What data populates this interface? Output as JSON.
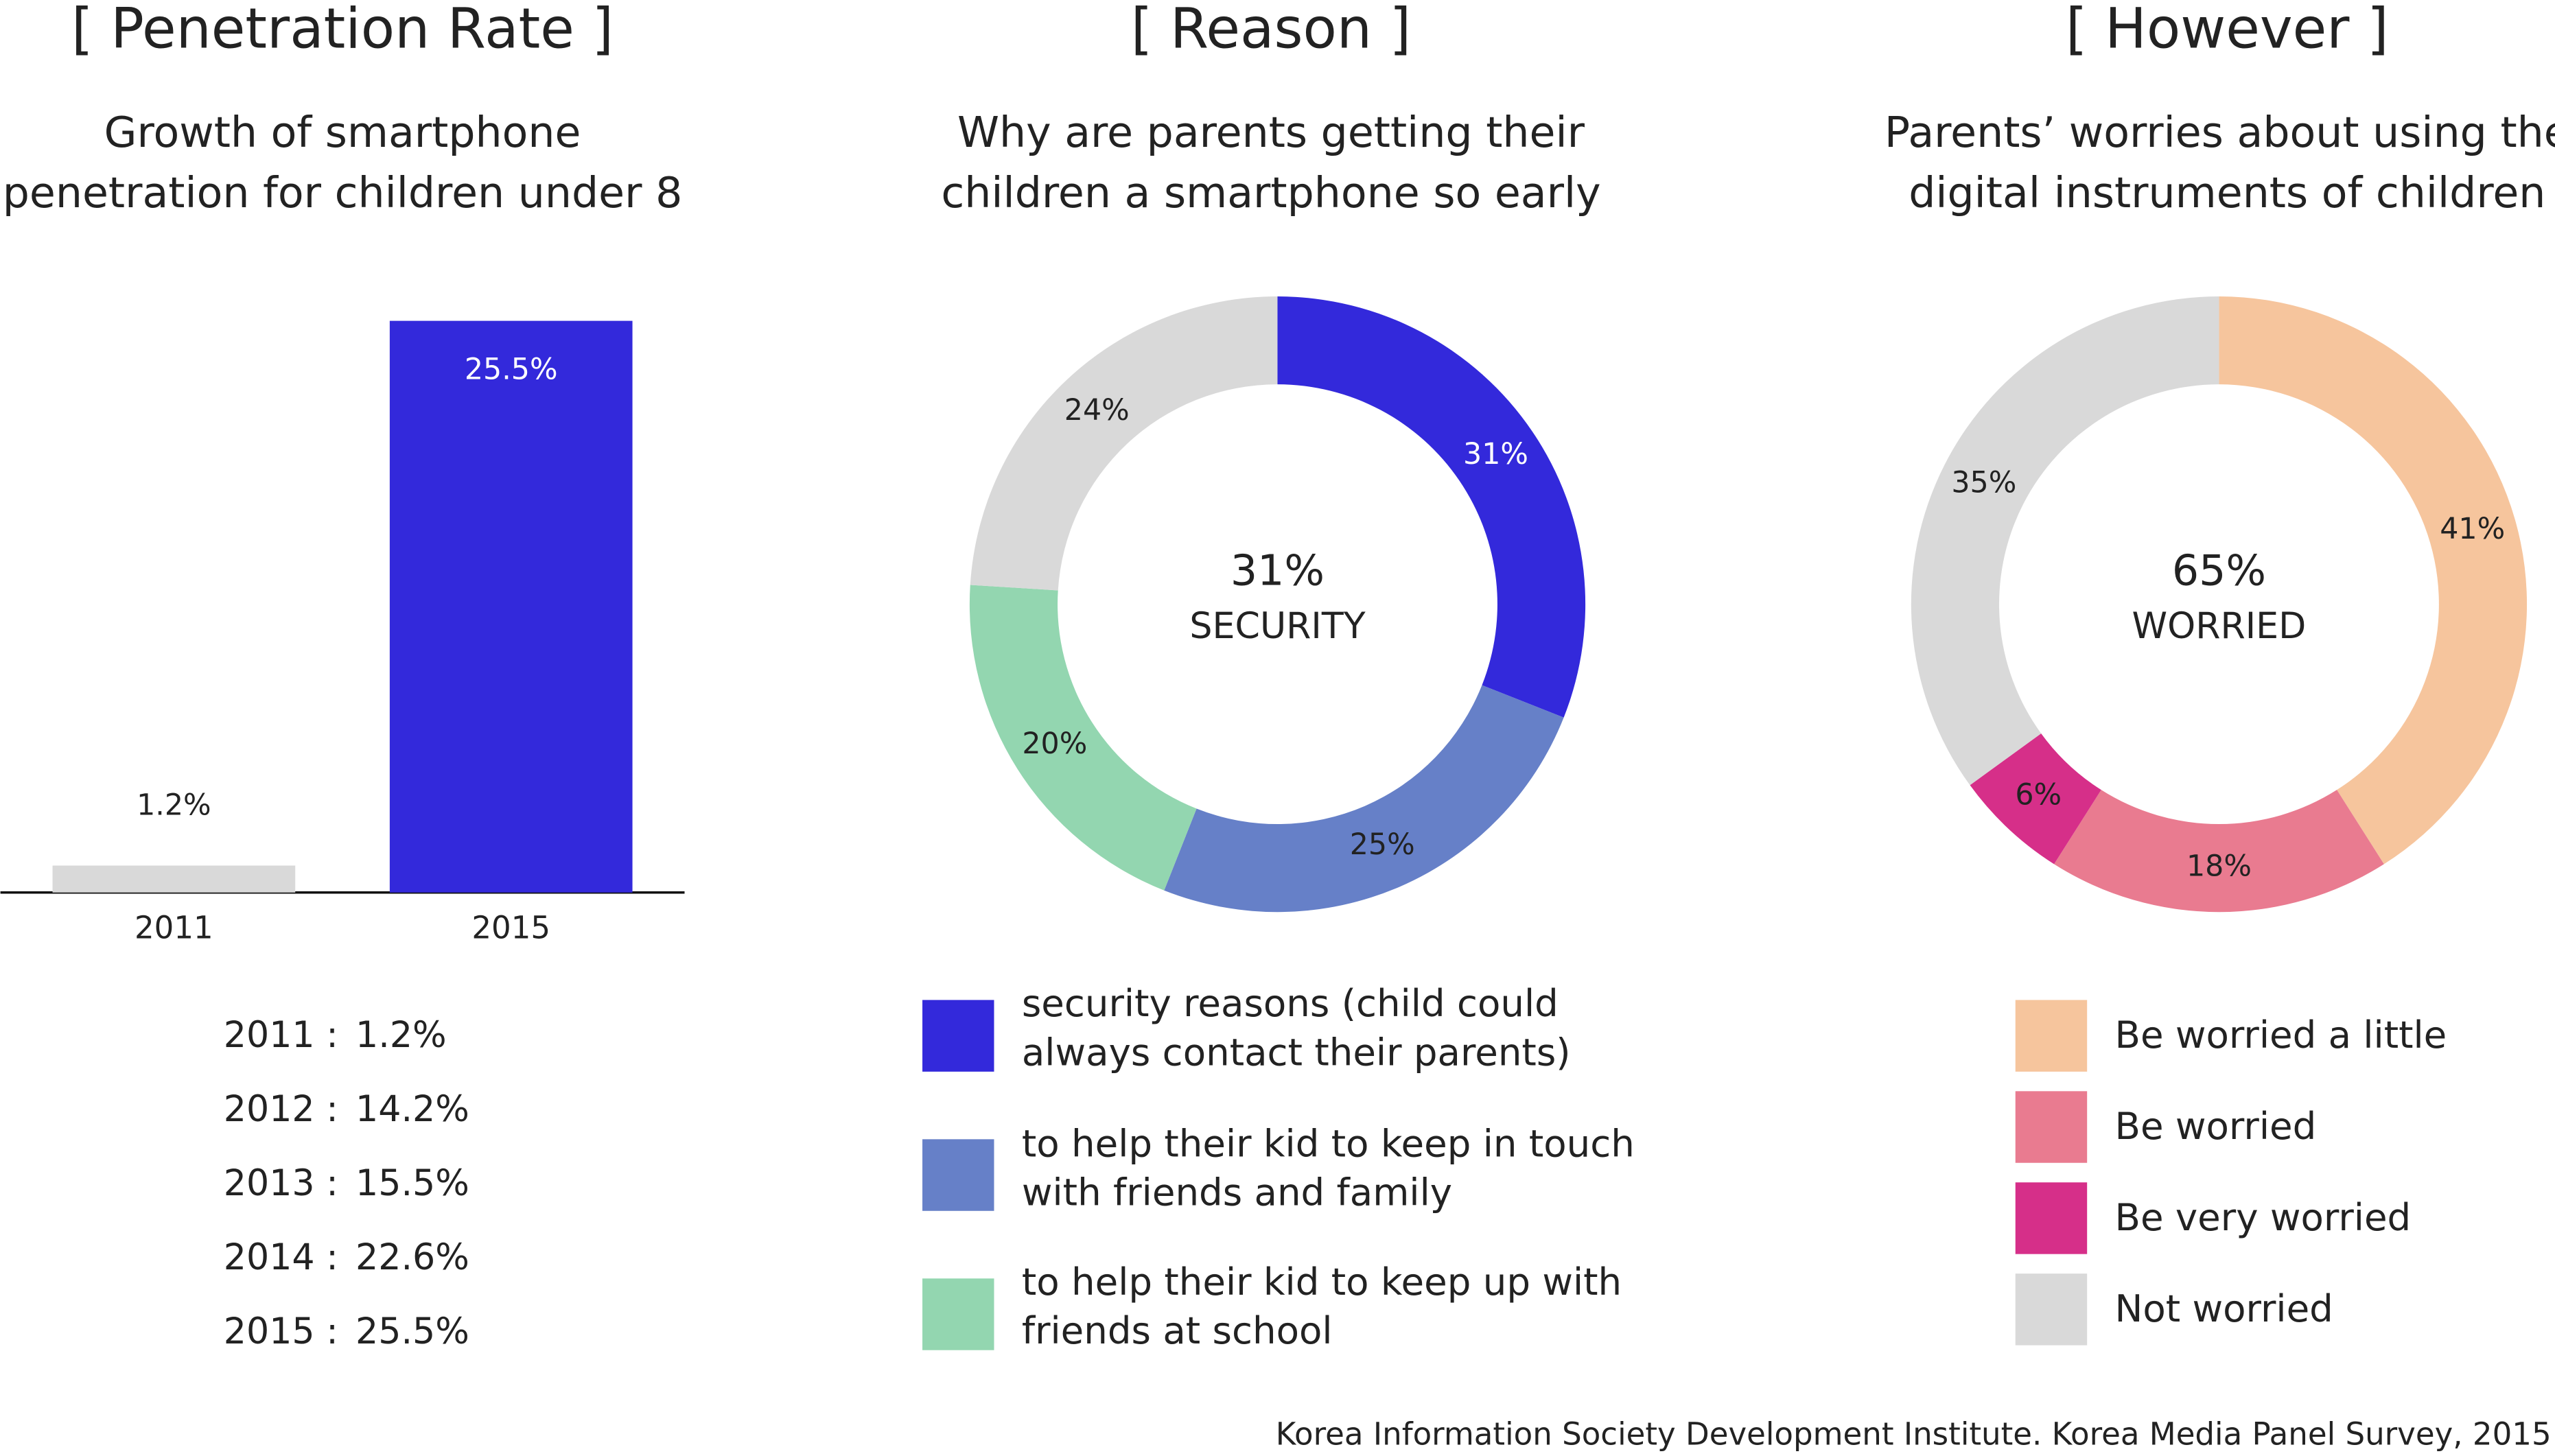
{
  "chart_data": [
    {
      "type": "bar",
      "title": "[ Penetration Rate ]",
      "subtitle": [
        "Growth of smartphone",
        "penetration for children under 8"
      ],
      "categories": [
        "2011",
        "2015"
      ],
      "values": [
        1.2,
        25.5
      ],
      "value_labels": [
        "1.2%",
        "25.5%"
      ],
      "colors": [
        "#d9d9d9",
        "#3329db"
      ],
      "yearly_values": [
        [
          "2011 :",
          "1.2%"
        ],
        [
          "2012 :",
          "14.2%"
        ],
        [
          "2013 :",
          "15.5%"
        ],
        [
          "2014 :",
          "22.6%"
        ],
        [
          "2015 :",
          "25.5%"
        ]
      ]
    },
    {
      "type": "donut",
      "title": "[ Reason ]",
      "subtitle": [
        "Why are parents getting their",
        "children a smartphone so early"
      ],
      "center_value": "31%",
      "center_label": "SECURITY",
      "categories": [
        "security reasons (child could always contact their parents)",
        "to help their kid to keep in touch with friends and family",
        "to help their kid to keep up with friends at school",
        null
      ],
      "values": [
        31,
        25,
        20,
        24
      ],
      "value_labels": [
        "31%",
        "25%",
        "20%",
        "24%"
      ],
      "colors": [
        "#3329db",
        "#6680c8",
        "#93d6b0",
        "#d9d9d9"
      ]
    },
    {
      "type": "donut",
      "title": "[ However ]",
      "subtitle": [
        "Parents’ worries about using the",
        "digital instruments of children"
      ],
      "center_value": "65%",
      "center_label": "WORRIED",
      "categories": [
        "Be worried a little",
        "Be worried",
        "Be very worried",
        "Not worried"
      ],
      "values": [
        41,
        18,
        6,
        35
      ],
      "value_labels": [
        "41%",
        "18%",
        "6%",
        "35%"
      ],
      "colors": [
        "#f6c59d",
        "#e97b90",
        "#d62f89",
        "#d9d9d9"
      ]
    }
  ],
  "source": "Korea Information Society Development Institute. Korea Media Panel Survey, 2015"
}
